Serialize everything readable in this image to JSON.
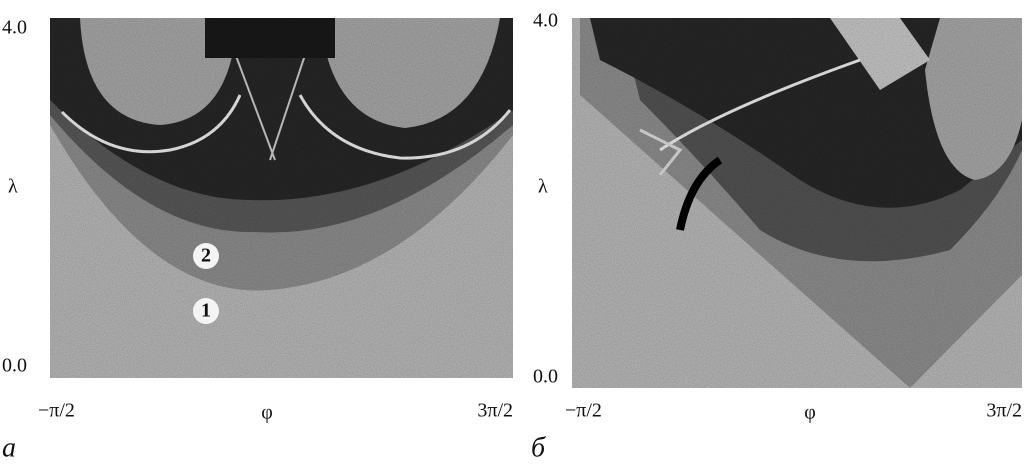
{
  "panels": [
    {
      "letter": "а",
      "y_top": "4.0",
      "y_bottom": "0.0",
      "y_label": "λ",
      "x_left": "−π/2",
      "x_label": "φ",
      "x_right": "3π/2",
      "regions": [
        "2",
        "1"
      ]
    },
    {
      "letter": "б",
      "y_top": "4.0",
      "y_bottom": "0.0",
      "y_label": "λ",
      "x_left": "−π/2",
      "x_label": "φ",
      "x_right": "3π/2"
    }
  ]
}
